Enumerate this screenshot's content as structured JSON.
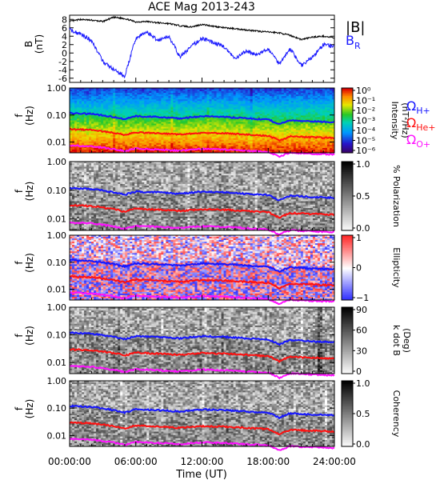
{
  "title": "ACE Mag 2013-243",
  "xaxis": {
    "label": "Time (UT)",
    "ticks": [
      "00:00:00",
      "06:00:00",
      "12:00:00",
      "18:00:00",
      "24:00:00"
    ],
    "range_hours": [
      0,
      24
    ]
  },
  "colors": {
    "B_total": "#000000",
    "B_R": "#1a1aff",
    "H_plus": "#1515ff",
    "He_plus": "#ff1010",
    "O_plus": "#ff10ff"
  },
  "chart_data": [
    {
      "type": "line",
      "panel": "field",
      "ylabel": "B\n(nT)",
      "ylim": [
        -7,
        9
      ],
      "yticks": [
        "8",
        "6",
        "4",
        "2",
        "0",
        "-2",
        "-4",
        "-6"
      ],
      "legend": [
        {
          "label": "|B|",
          "color": "#000000"
        },
        {
          "label": "B",
          "sub": "R",
          "color": "#1a1aff"
        }
      ],
      "series": [
        {
          "name": "|B|",
          "x": [
            0,
            1,
            2,
            3,
            4,
            5,
            6,
            7,
            8,
            9,
            10,
            11,
            12,
            13,
            14,
            15,
            16,
            17,
            18,
            19,
            20,
            21,
            22,
            23,
            24
          ],
          "values": [
            7.5,
            8.0,
            7.8,
            7.5,
            8.5,
            8.2,
            7.4,
            7.5,
            7.2,
            7.0,
            6.5,
            6.2,
            6.8,
            6.4,
            6.0,
            5.8,
            5.5,
            5.2,
            5.0,
            4.8,
            4.2,
            3.2,
            3.8,
            4.0,
            3.6
          ]
        },
        {
          "name": "B_R",
          "x": [
            0,
            1,
            2,
            3,
            4,
            5,
            6,
            7,
            8,
            9,
            10,
            11,
            12,
            13,
            14,
            15,
            16,
            17,
            18,
            19,
            20,
            21,
            22,
            23,
            24
          ],
          "values": [
            5.5,
            4.5,
            3.0,
            -2.0,
            -4.0,
            -5.5,
            3.5,
            5.0,
            3.0,
            4.0,
            -1.0,
            1.5,
            3.5,
            2.5,
            1.5,
            -1.5,
            0.5,
            -0.5,
            1.0,
            -2.5,
            1.0,
            -3.0,
            -1.0,
            2.0,
            1.5
          ]
        }
      ]
    },
    {
      "type": "heatmap",
      "panel": "intensity",
      "ylabel": "f\n(Hz)",
      "yscale": "log",
      "ylim": [
        0.004,
        1.0
      ],
      "yticks": [
        "1.00",
        "0.10",
        "0.01"
      ],
      "colorbar": {
        "label": "Intensity\n(nT²/Hz)",
        "ticks": [
          "10⁰",
          "10⁻¹",
          "10⁻²",
          "10⁻³",
          "10⁻⁴",
          "10⁻⁵",
          "10⁻⁶"
        ],
        "colormap": "rainbow"
      },
      "gyrofrequency_legend": [
        {
          "symbol": "Ω",
          "sub": "H+",
          "color": "#1515ff"
        },
        {
          "symbol": "Ω",
          "sub": "He+",
          "color": "#ff1010"
        },
        {
          "symbol": "Ω",
          "sub": "O+",
          "color": "#ff10ff"
        }
      ]
    },
    {
      "type": "heatmap",
      "panel": "polarization",
      "ylabel": "f\n(Hz)",
      "yscale": "log",
      "ylim": [
        0.004,
        1.0
      ],
      "yticks": [
        "1.00",
        "0.10",
        "0.01"
      ],
      "colorbar": {
        "label": "% Polarization",
        "ticks": [
          "1.0",
          "0.5",
          "0.0"
        ],
        "colormap": "gray-inverted"
      }
    },
    {
      "type": "heatmap",
      "panel": "ellipticity",
      "ylabel": "f\n(Hz)",
      "yscale": "log",
      "ylim": [
        0.004,
        1.0
      ],
      "yticks": [
        "1.00",
        "0.10",
        "0.01"
      ],
      "colorbar": {
        "label": "Ellipticity",
        "ticks": [
          "1",
          "0",
          "−1"
        ],
        "colormap": "blue-white-red"
      }
    },
    {
      "type": "heatmap",
      "panel": "kdotb",
      "ylabel": "f\n(Hz)",
      "yscale": "log",
      "ylim": [
        0.004,
        1.0
      ],
      "yticks": [
        "1.00",
        "0.10",
        "0.01"
      ],
      "colorbar": {
        "label": "k dot B\n(Deg)",
        "ticks": [
          "90",
          "60",
          "30",
          "0"
        ],
        "colormap": "gray-inverted"
      }
    },
    {
      "type": "heatmap",
      "panel": "coherency",
      "ylabel": "f\n(Hz)",
      "yscale": "log",
      "ylim": [
        0.004,
        1.0
      ],
      "yticks": [
        "1.00",
        "0.10",
        "0.01"
      ],
      "colorbar": {
        "label": "Coherency",
        "ticks": [
          "1.0",
          "0.5",
          "0.0"
        ],
        "colormap": "gray-inverted"
      }
    },
    {
      "type": "line",
      "panel": "gyrofrequencies",
      "x_hours": [
        0,
        2,
        4,
        5,
        6,
        8,
        10,
        12,
        14,
        16,
        18,
        19,
        20,
        22,
        24
      ],
      "series": [
        {
          "name": "Ω_H+",
          "unit": "Hz",
          "values": [
            0.12,
            0.11,
            0.085,
            0.07,
            0.09,
            0.085,
            0.075,
            0.09,
            0.085,
            0.075,
            0.068,
            0.045,
            0.065,
            0.058,
            0.055
          ]
        },
        {
          "name": "Ω_He+",
          "unit": "Hz",
          "values": [
            0.03,
            0.028,
            0.022,
            0.018,
            0.023,
            0.021,
            0.019,
            0.022,
            0.021,
            0.019,
            0.017,
            0.011,
            0.016,
            0.015,
            0.014
          ]
        },
        {
          "name": "Ω_O+",
          "unit": "Hz",
          "values": [
            0.0075,
            0.007,
            0.0055,
            0.0045,
            0.0058,
            0.0053,
            0.0048,
            0.0056,
            0.0053,
            0.0048,
            0.0043,
            0.0028,
            0.0041,
            0.0037,
            0.0035
          ]
        }
      ]
    }
  ]
}
